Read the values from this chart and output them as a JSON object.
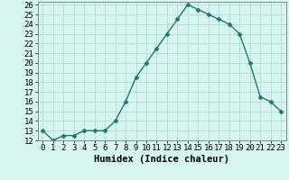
{
  "x": [
    0,
    1,
    2,
    3,
    4,
    5,
    6,
    7,
    8,
    9,
    10,
    11,
    12,
    13,
    14,
    15,
    16,
    17,
    18,
    19,
    20,
    21,
    22,
    23
  ],
  "y": [
    13.0,
    12.0,
    12.5,
    12.5,
    13.0,
    13.0,
    13.0,
    14.0,
    16.0,
    18.5,
    20.0,
    21.5,
    23.0,
    24.5,
    26.0,
    25.5,
    25.0,
    24.5,
    24.0,
    23.0,
    20.0,
    16.5,
    16.0,
    15.0
  ],
  "xlabel": "Humidex (Indice chaleur)",
  "ylim": [
    12,
    26
  ],
  "xlim": [
    -0.5,
    23.5
  ],
  "line_color": "#1a7a6e",
  "marker": "D",
  "marker_size": 2.5,
  "bg_color": "#d6f5f0",
  "grid_color": "#b0d8d4",
  "tick_label_fontsize": 6.5,
  "xlabel_fontsize": 7.5
}
